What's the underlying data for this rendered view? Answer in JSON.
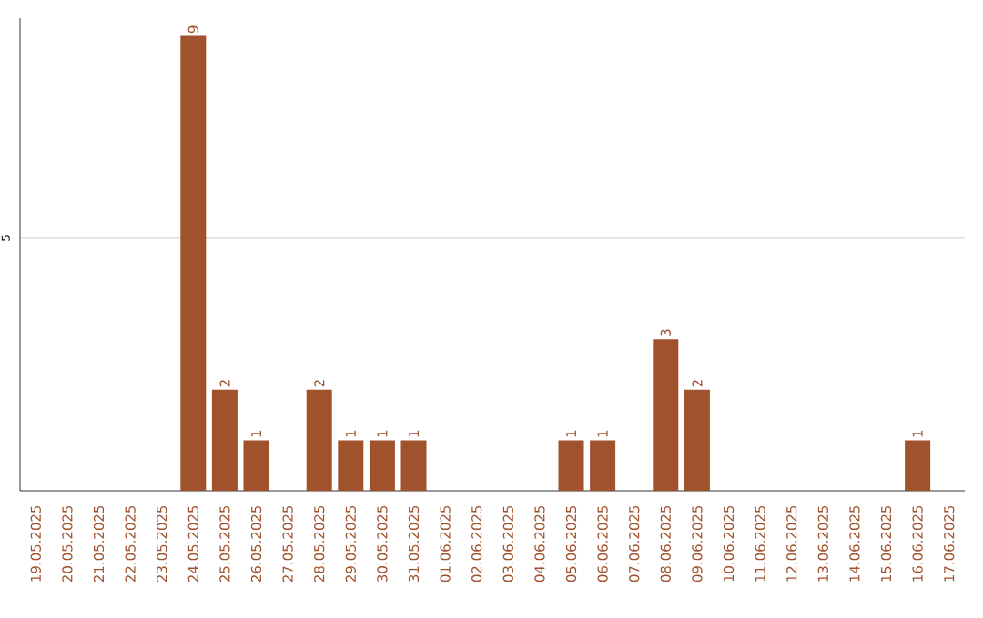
{
  "chart_data": {
    "type": "bar",
    "categories": [
      "19.05.2025",
      "20.05.2025",
      "21.05.2025",
      "22.05.2025",
      "23.05.2025",
      "24.05.2025",
      "25.05.2025",
      "26.05.2025",
      "27.05.2025",
      "28.05.2025",
      "29.05.2025",
      "30.05.2025",
      "31.05.2025",
      "01.06.2025",
      "02.06.2025",
      "03.06.2025",
      "04.06.2025",
      "05.06.2025",
      "06.06.2025",
      "07.06.2025",
      "08.06.2025",
      "09.06.2025",
      "10.06.2025",
      "11.06.2025",
      "12.06.2025",
      "13.06.2025",
      "14.06.2025",
      "15.06.2025",
      "16.06.2025",
      "17.06.2025"
    ],
    "values": [
      0,
      0,
      0,
      0,
      0,
      9,
      2,
      1,
      0,
      2,
      1,
      1,
      1,
      0,
      0,
      0,
      0,
      1,
      1,
      0,
      3,
      2,
      0,
      0,
      0,
      0,
      0,
      0,
      1,
      0
    ],
    "value_labels": [
      null,
      null,
      null,
      null,
      null,
      "9",
      "2",
      "1",
      null,
      "2",
      "1",
      "1",
      "1",
      null,
      null,
      null,
      null,
      "1",
      "1",
      null,
      "3",
      "2",
      null,
      null,
      null,
      null,
      null,
      null,
      "1",
      null
    ],
    "color": "#a0522d",
    "ylim": [
      0,
      9.35
    ],
    "yticks": [
      5
    ],
    "grid": "y"
  }
}
